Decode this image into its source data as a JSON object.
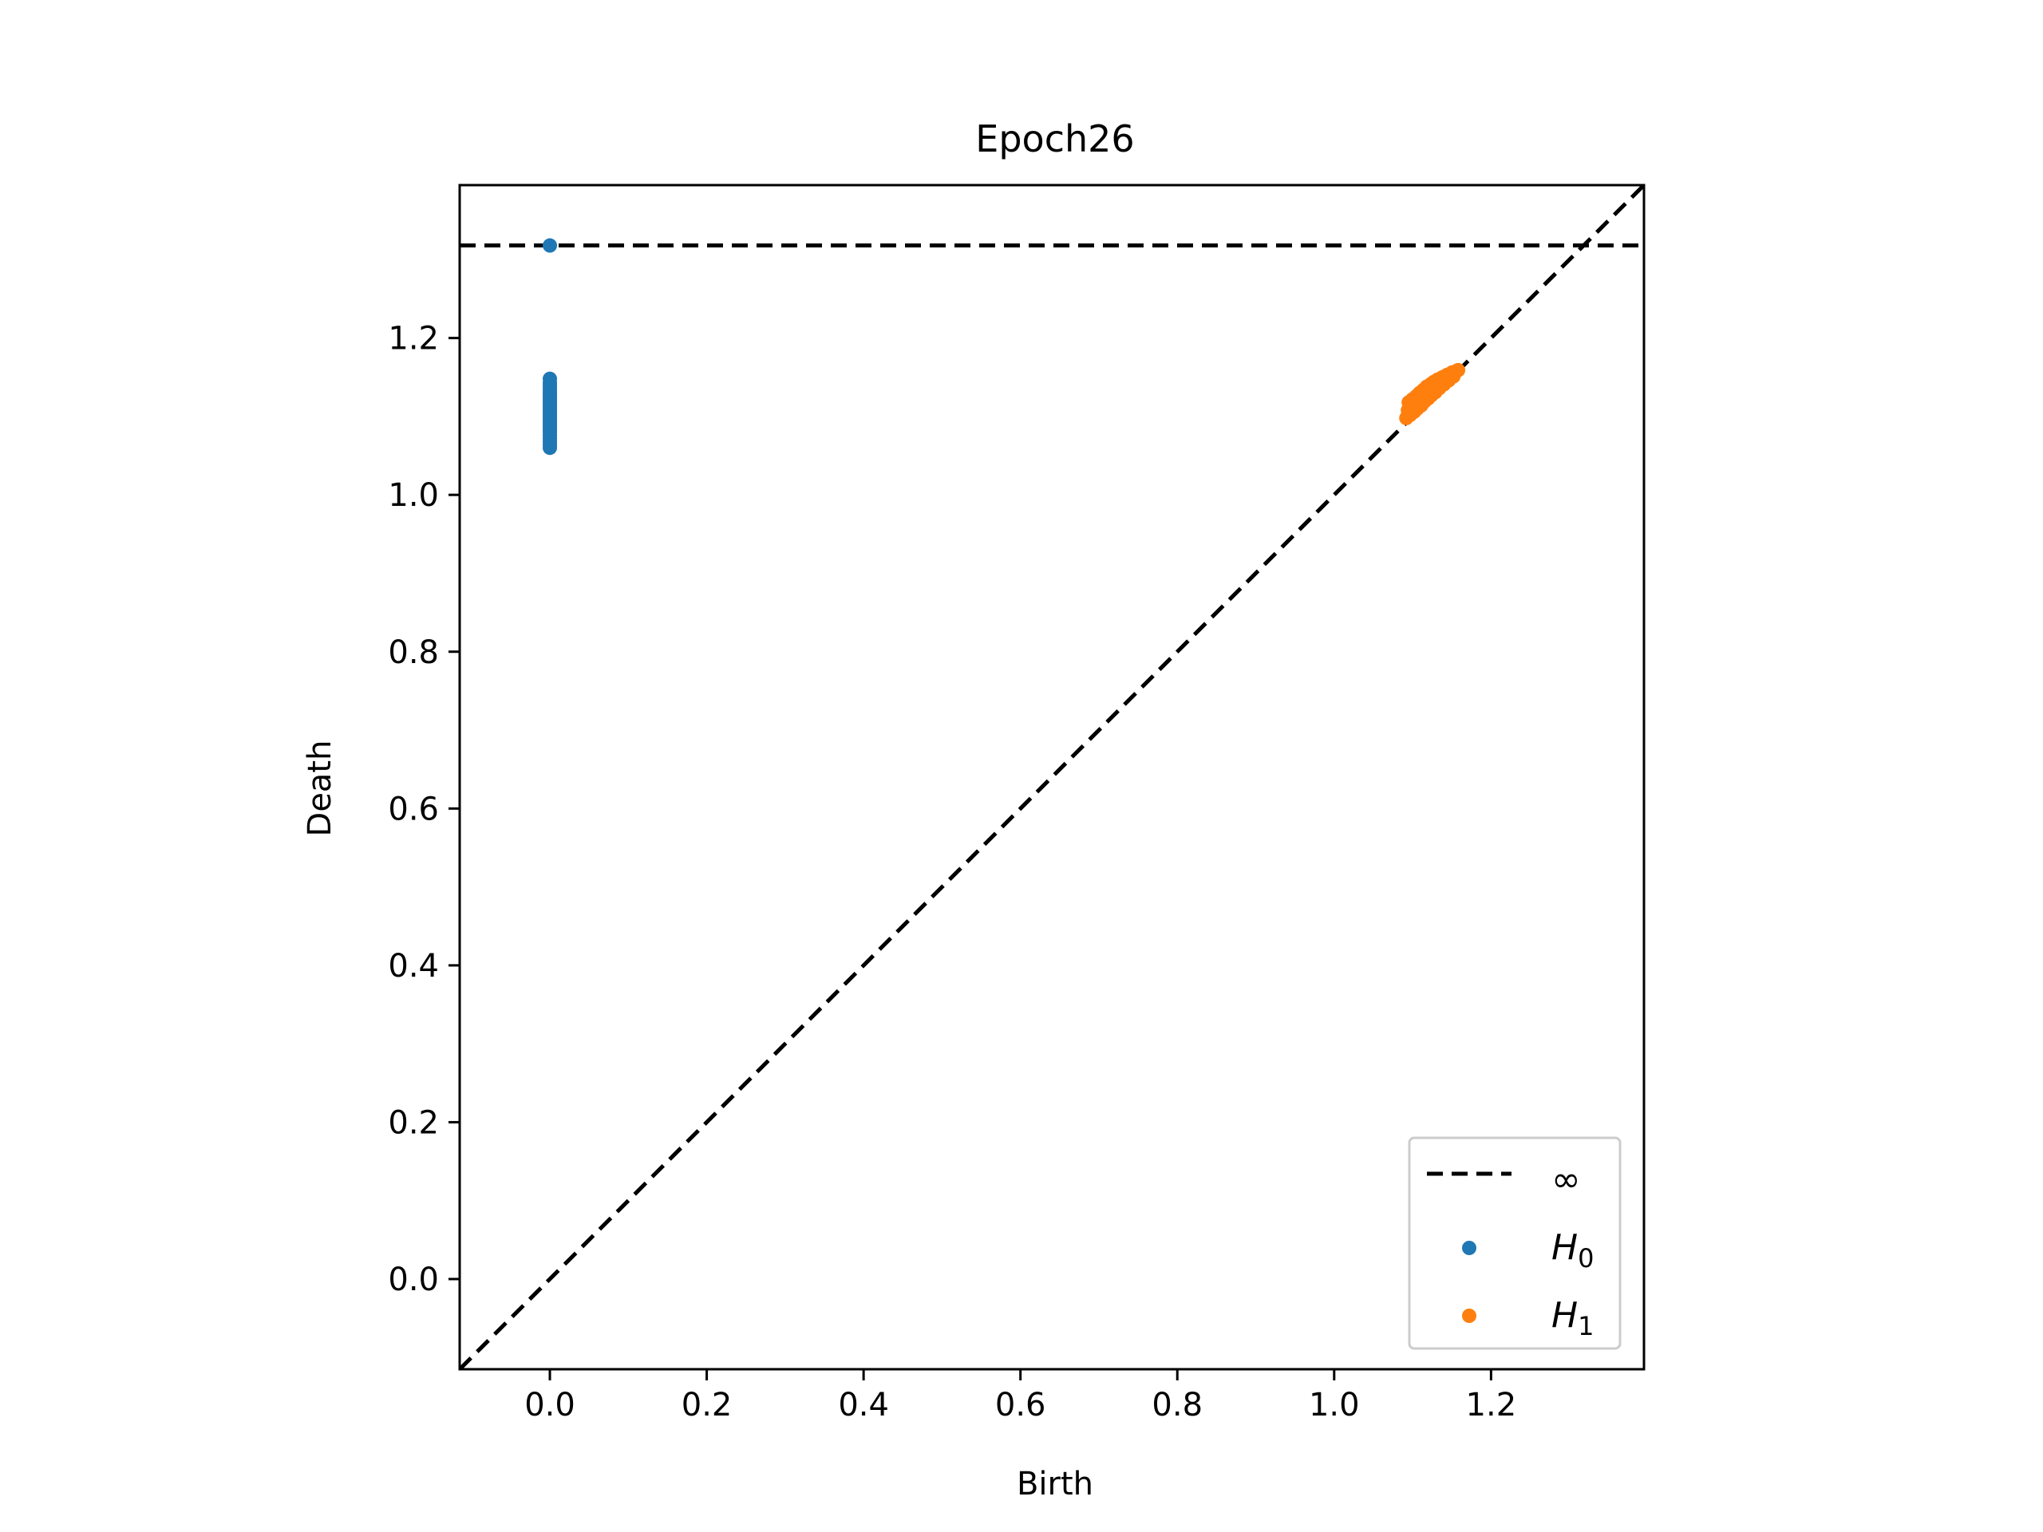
{
  "chart_data": {
    "type": "scatter",
    "title": "Epoch26",
    "xlabel": "Birth",
    "ylabel": "Death",
    "xlim": [
      -0.115,
      1.395
    ],
    "ylim": [
      -0.115,
      1.395
    ],
    "xticks": [
      0.0,
      0.2,
      0.4,
      0.6,
      0.8,
      1.0,
      1.2
    ],
    "yticks": [
      0.0,
      0.2,
      0.4,
      0.6,
      0.8,
      1.0,
      1.2
    ],
    "xtick_labels": [
      "0.0",
      "0.2",
      "0.4",
      "0.6",
      "0.8",
      "1.0",
      "1.2"
    ],
    "ytick_labels": [
      "0.0",
      "0.2",
      "0.4",
      "0.6",
      "0.8",
      "1.0",
      "1.2"
    ],
    "infinity_line": {
      "y": 1.318,
      "style": "dashed",
      "color": "#000000"
    },
    "diagonal": {
      "style": "dashed",
      "color": "#000000"
    },
    "legend": {
      "position": "lower-right",
      "entries": [
        {
          "label": "∞",
          "marker": "dashed-line",
          "color": "#000000"
        },
        {
          "label": "H",
          "subscript": "0",
          "marker": "dot",
          "color": "#1f77b4"
        },
        {
          "label": "H",
          "subscript": "1",
          "marker": "dot",
          "color": "#ff7f0e"
        }
      ]
    },
    "series": [
      {
        "name": "H0",
        "color": "#1f77b4",
        "points": [
          [
            0,
            1.318
          ],
          [
            0,
            1.148
          ],
          [
            0,
            1.143
          ],
          [
            0,
            1.139
          ],
          [
            0,
            1.135
          ],
          [
            0,
            1.131
          ],
          [
            0,
            1.128
          ],
          [
            0,
            1.125
          ],
          [
            0,
            1.122
          ],
          [
            0,
            1.119
          ],
          [
            0,
            1.116
          ],
          [
            0,
            1.113
          ],
          [
            0,
            1.11
          ],
          [
            0,
            1.107
          ],
          [
            0,
            1.104
          ],
          [
            0,
            1.101
          ],
          [
            0,
            1.098
          ],
          [
            0,
            1.095
          ],
          [
            0,
            1.092
          ],
          [
            0,
            1.089
          ],
          [
            0,
            1.086
          ],
          [
            0,
            1.083
          ],
          [
            0,
            1.08
          ],
          [
            0,
            1.076
          ],
          [
            0,
            1.072
          ],
          [
            0,
            1.068
          ],
          [
            0,
            1.064
          ],
          [
            0,
            1.06
          ]
        ]
      },
      {
        "name": "H1",
        "color": "#ff7f0e",
        "points": [
          [
            1.092,
            1.098
          ],
          [
            1.094,
            1.108
          ],
          [
            1.095,
            1.118
          ],
          [
            1.097,
            1.102
          ],
          [
            1.099,
            1.112
          ],
          [
            1.1,
            1.122
          ],
          [
            1.102,
            1.106
          ],
          [
            1.103,
            1.116
          ],
          [
            1.105,
            1.126
          ],
          [
            1.106,
            1.11
          ],
          [
            1.108,
            1.12
          ],
          [
            1.109,
            1.13
          ],
          [
            1.111,
            1.114
          ],
          [
            1.112,
            1.124
          ],
          [
            1.114,
            1.134
          ],
          [
            1.115,
            1.119
          ],
          [
            1.117,
            1.128
          ],
          [
            1.118,
            1.138
          ],
          [
            1.12,
            1.123
          ],
          [
            1.121,
            1.132
          ],
          [
            1.123,
            1.141
          ],
          [
            1.124,
            1.127
          ],
          [
            1.126,
            1.136
          ],
          [
            1.127,
            1.144
          ],
          [
            1.129,
            1.131
          ],
          [
            1.13,
            1.14
          ],
          [
            1.132,
            1.147
          ],
          [
            1.134,
            1.136
          ],
          [
            1.136,
            1.144
          ],
          [
            1.138,
            1.15
          ],
          [
            1.14,
            1.141
          ],
          [
            1.142,
            1.148
          ],
          [
            1.144,
            1.153
          ],
          [
            1.146,
            1.146
          ],
          [
            1.148,
            1.152
          ],
          [
            1.15,
            1.156
          ],
          [
            1.152,
            1.151
          ],
          [
            1.154,
            1.156
          ],
          [
            1.156,
            1.158
          ],
          [
            1.158,
            1.159
          ]
        ]
      }
    ]
  }
}
